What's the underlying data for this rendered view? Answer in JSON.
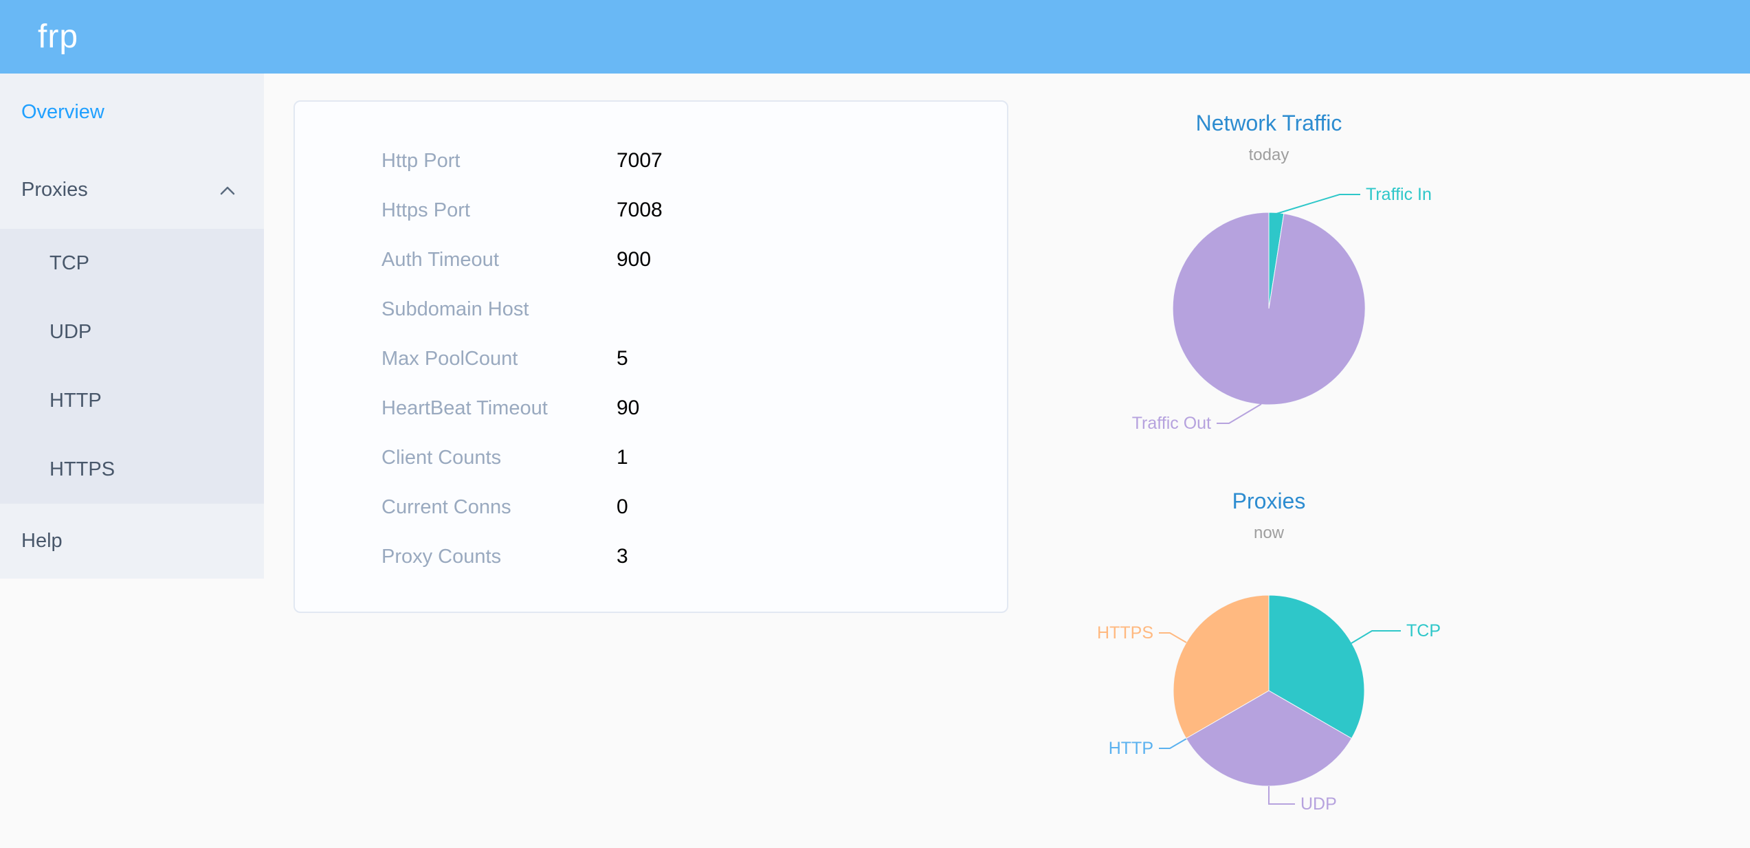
{
  "header": {
    "logo": "frp"
  },
  "sidebar": {
    "items": [
      {
        "label": "Overview",
        "active": true
      },
      {
        "label": "Proxies",
        "expanded": true,
        "children": [
          "TCP",
          "UDP",
          "HTTP",
          "HTTPS"
        ]
      },
      {
        "label": "Help",
        "active": false
      }
    ]
  },
  "overview_card": {
    "rows": [
      {
        "label": "Http Port",
        "value": "7007"
      },
      {
        "label": "Https Port",
        "value": "7008"
      },
      {
        "label": "Auth Timeout",
        "value": "900"
      },
      {
        "label": "Subdomain Host",
        "value": ""
      },
      {
        "label": "Max PoolCount",
        "value": "5"
      },
      {
        "label": "HeartBeat Timeout",
        "value": "90"
      },
      {
        "label": "Client Counts",
        "value": "1"
      },
      {
        "label": "Current Conns",
        "value": "0"
      },
      {
        "label": "Proxy Counts",
        "value": "3"
      }
    ]
  },
  "chart_data": [
    {
      "type": "pie",
      "title": "Network Traffic",
      "subtitle": "today",
      "legend_position": "none",
      "label_style": "outside-leader-lines",
      "slices": [
        {
          "label": "Traffic In",
          "value_pct": 2.5,
          "color": "#2ec7c9"
        },
        {
          "label": "Traffic Out",
          "value_pct": 97.5,
          "color": "#b6a2de"
        }
      ]
    },
    {
      "type": "pie",
      "title": "Proxies",
      "subtitle": "now",
      "legend_position": "none",
      "label_style": "outside-leader-lines",
      "slices": [
        {
          "label": "TCP",
          "value": 1,
          "color": "#2ec7c9"
        },
        {
          "label": "UDP",
          "value": 1,
          "color": "#b6a2de"
        },
        {
          "label": "HTTP",
          "value": 0,
          "color": "#5ab1ef"
        },
        {
          "label": "HTTPS",
          "value": 1,
          "color": "#ffb980"
        }
      ]
    }
  ],
  "colors": {
    "header_bg": "#69b8f5",
    "sidebar_bg": "#eef1f6",
    "submenu_bg": "#e4e8f1",
    "menu_text": "#48576a",
    "menu_active": "#20a0ff",
    "chart_title_blue": "#2d8cd0",
    "subtitle_gray": "#9e9e9e",
    "label_gray": "#99a9bf",
    "teal": "#2ec7c9",
    "purple": "#b6a2de",
    "http_blue": "#5ab1ef",
    "orange": "#ffb980"
  }
}
